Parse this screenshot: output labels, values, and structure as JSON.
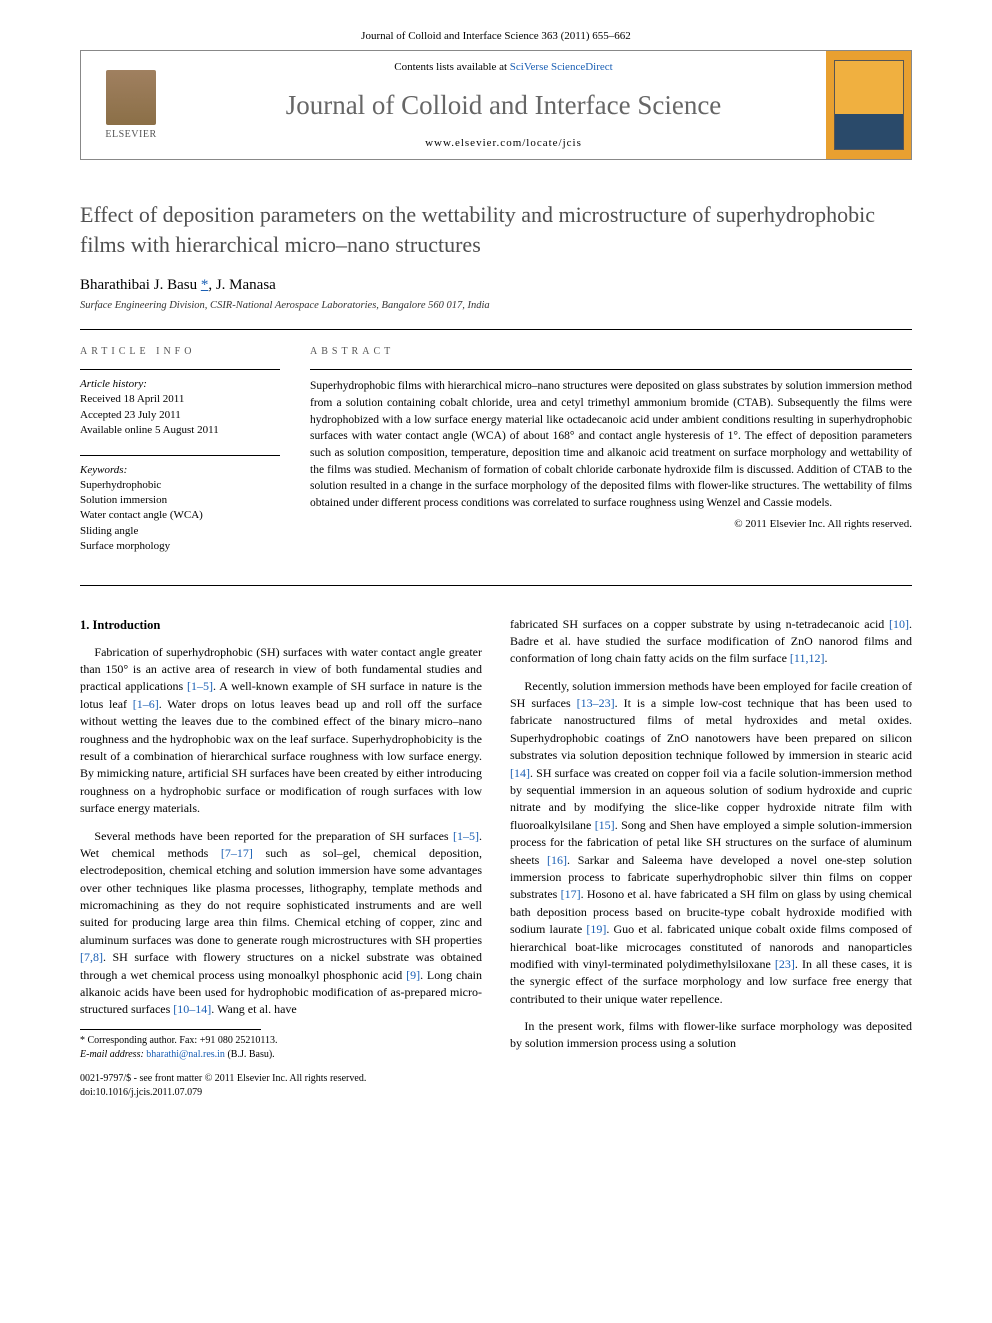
{
  "header": {
    "citation": "Journal of Colloid and Interface Science 363 (2011) 655–662",
    "contents_prefix": "Contents lists available at ",
    "contents_link": "SciVerse ScienceDirect",
    "journal_name": "Journal of Colloid and Interface Science",
    "journal_url": "www.elsevier.com/locate/jcis",
    "publisher": "ELSEVIER"
  },
  "article": {
    "title": "Effect of deposition parameters on the wettability and microstructure of superhydrophobic films with hierarchical micro–nano structures",
    "authors_html": "Bharathibai J. Basu",
    "author2": ", J. Manasa",
    "corr_mark": "*",
    "affiliation": "Surface Engineering Division, CSIR-National Aerospace Laboratories, Bangalore 560 017, India"
  },
  "info": {
    "heading": "ARTICLE INFO",
    "history_label": "Article history:",
    "history": "Received 18 April 2011\nAccepted 23 July 2011\nAvailable online 5 August 2011",
    "keywords_label": "Keywords:",
    "keywords": "Superhydrophobic\nSolution immersion\nWater contact angle (WCA)\nSliding angle\nSurface morphology"
  },
  "abstract": {
    "heading": "ABSTRACT",
    "text": "Superhydrophobic films with hierarchical micro–nano structures were deposited on glass substrates by solution immersion method from a solution containing cobalt chloride, urea and cetyl trimethyl ammonium bromide (CTAB). Subsequently the films were hydrophobized with a low surface energy material like octadecanoic acid under ambient conditions resulting in superhydrophobic surfaces with water contact angle (WCA) of about 168° and contact angle hysteresis of 1°. The effect of deposition parameters such as solution composition, temperature, deposition time and alkanoic acid treatment on surface morphology and wettability of the films was studied. Mechanism of formation of cobalt chloride carbonate hydroxide film is discussed. Addition of CTAB to the solution resulted in a change in the surface morphology of the deposited films with flower-like structures. The wettability of films obtained under different process conditions was correlated to surface roughness using Wenzel and Cassie models.",
    "copyright": "© 2011 Elsevier Inc. All rights reserved."
  },
  "body": {
    "section1_heading": "1. Introduction",
    "p1": "Fabrication of superhydrophobic (SH) surfaces with water contact angle greater than 150° is an active area of research in view of both fundamental studies and practical applications [1–5]. A well-known example of SH surface in nature is the lotus leaf [1–6]. Water drops on lotus leaves bead up and roll off the surface without wetting the leaves due to the combined effect of the binary micro–nano roughness and the hydrophobic wax on the leaf surface. Superhydrophobicity is the result of a combination of hierarchical surface roughness with low surface energy. By mimicking nature, artificial SH surfaces have been created by either introducing roughness on a hydrophobic surface or modification of rough surfaces with low surface energy materials.",
    "p2": "Several methods have been reported for the preparation of SH surfaces [1–5]. Wet chemical methods [7–17] such as sol–gel, chemical deposition, electrodeposition, chemical etching and solution immersion have some advantages over other techniques like plasma processes, lithography, template methods and micromachining as they do not require sophisticated instruments and are well suited for producing large area thin films. Chemical etching of copper, zinc and aluminum surfaces was done to generate rough microstructures with SH properties [7,8]. SH surface with flowery structures on a nickel substrate was obtained through a wet chemical process using monoalkyl phosphonic acid [9]. Long chain alkanoic acids have been used for hydrophobic modification of as-prepared micro-structured surfaces [10–14]. Wang et al. have",
    "p3": "fabricated SH surfaces on a copper substrate by using n-tetradecanoic acid [10]. Badre et al. have studied the surface modification of ZnO nanorod films and conformation of long chain fatty acids on the film surface [11,12].",
    "p4": "Recently, solution immersion methods have been employed for facile creation of SH surfaces [13–23]. It is a simple low-cost technique that has been used to fabricate nanostructured films of metal hydroxides and metal oxides. Superhydrophobic coatings of ZnO nanotowers have been prepared on silicon substrates via solution deposition technique followed by immersion in stearic acid [14]. SH surface was created on copper foil via a facile solution-immersion method by sequential immersion in an aqueous solution of sodium hydroxide and cupric nitrate and by modifying the slice-like copper hydroxide nitrate film with fluoroalkylsilane [15]. Song and Shen have employed a simple solution-immersion process for the fabrication of petal like SH structures on the surface of aluminum sheets [16]. Sarkar and Saleema have developed a novel one-step solution immersion process to fabricate superhydrophobic silver thin films on copper substrates [17]. Hosono et al. have fabricated a SH film on glass by using chemical bath deposition process based on brucite-type cobalt hydroxide modified with sodium laurate [19]. Guo et al. fabricated unique cobalt oxide films composed of hierarchical boat-like microcages constituted of nanorods and nanoparticles modified with vinyl-terminated polydimethylsiloxane [23]. In all these cases, it is the synergic effect of the surface morphology and low surface free energy that contributed to their unique water repellence.",
    "p5": "In the present work, films with flower-like surface morphology was deposited by solution immersion process using a solution"
  },
  "footnotes": {
    "corr": "Corresponding author. Fax: +91 080 25210113.",
    "email_label": "E-mail address:",
    "email": "bharathi@nal.res.in",
    "email_suffix": "(B.J. Basu).",
    "issn": "0021-9797/$ - see front matter © 2011 Elsevier Inc. All rights reserved.",
    "doi": "doi:10.1016/j.jcis.2011.07.079"
  },
  "colors": {
    "link": "#1a5fb4",
    "title_gray": "#505050",
    "journal_gray": "#666666"
  }
}
